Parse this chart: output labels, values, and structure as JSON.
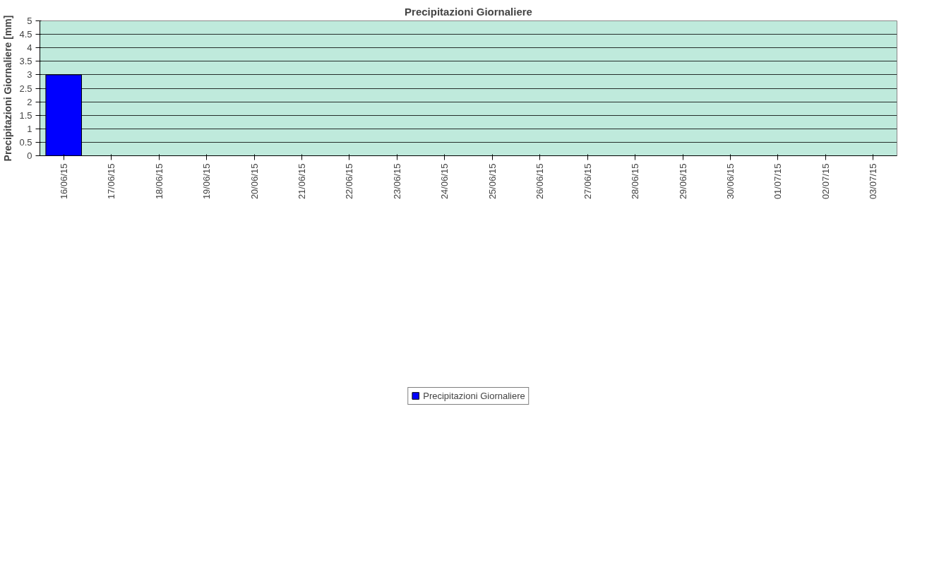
{
  "chart_data": {
    "type": "bar",
    "title": "Precipitazioni Giornaliere",
    "ylabel": "Precipitazioni Giornaliere [mm]",
    "categories": [
      "16/06/15",
      "17/06/15",
      "18/06/15",
      "19/06/15",
      "20/06/15",
      "21/06/15",
      "22/06/15",
      "23/06/15",
      "24/06/15",
      "25/06/15",
      "26/06/15",
      "27/06/15",
      "28/06/15",
      "29/06/15",
      "30/06/15",
      "01/07/15",
      "02/07/15",
      "03/07/15"
    ],
    "series": [
      {
        "name": "Precipitazioni Giornaliere",
        "color": "#0000ff",
        "values": [
          3,
          0,
          0,
          0,
          0,
          0,
          0,
          0,
          0,
          0,
          0,
          0,
          0,
          0,
          0,
          0,
          0,
          0
        ]
      }
    ],
    "ylim": [
      0,
      5
    ],
    "yticks": [
      0,
      0.5,
      1,
      1.5,
      2,
      2.5,
      3,
      3.5,
      4,
      4.5,
      5
    ],
    "grid": "y",
    "legend": "bottom"
  }
}
